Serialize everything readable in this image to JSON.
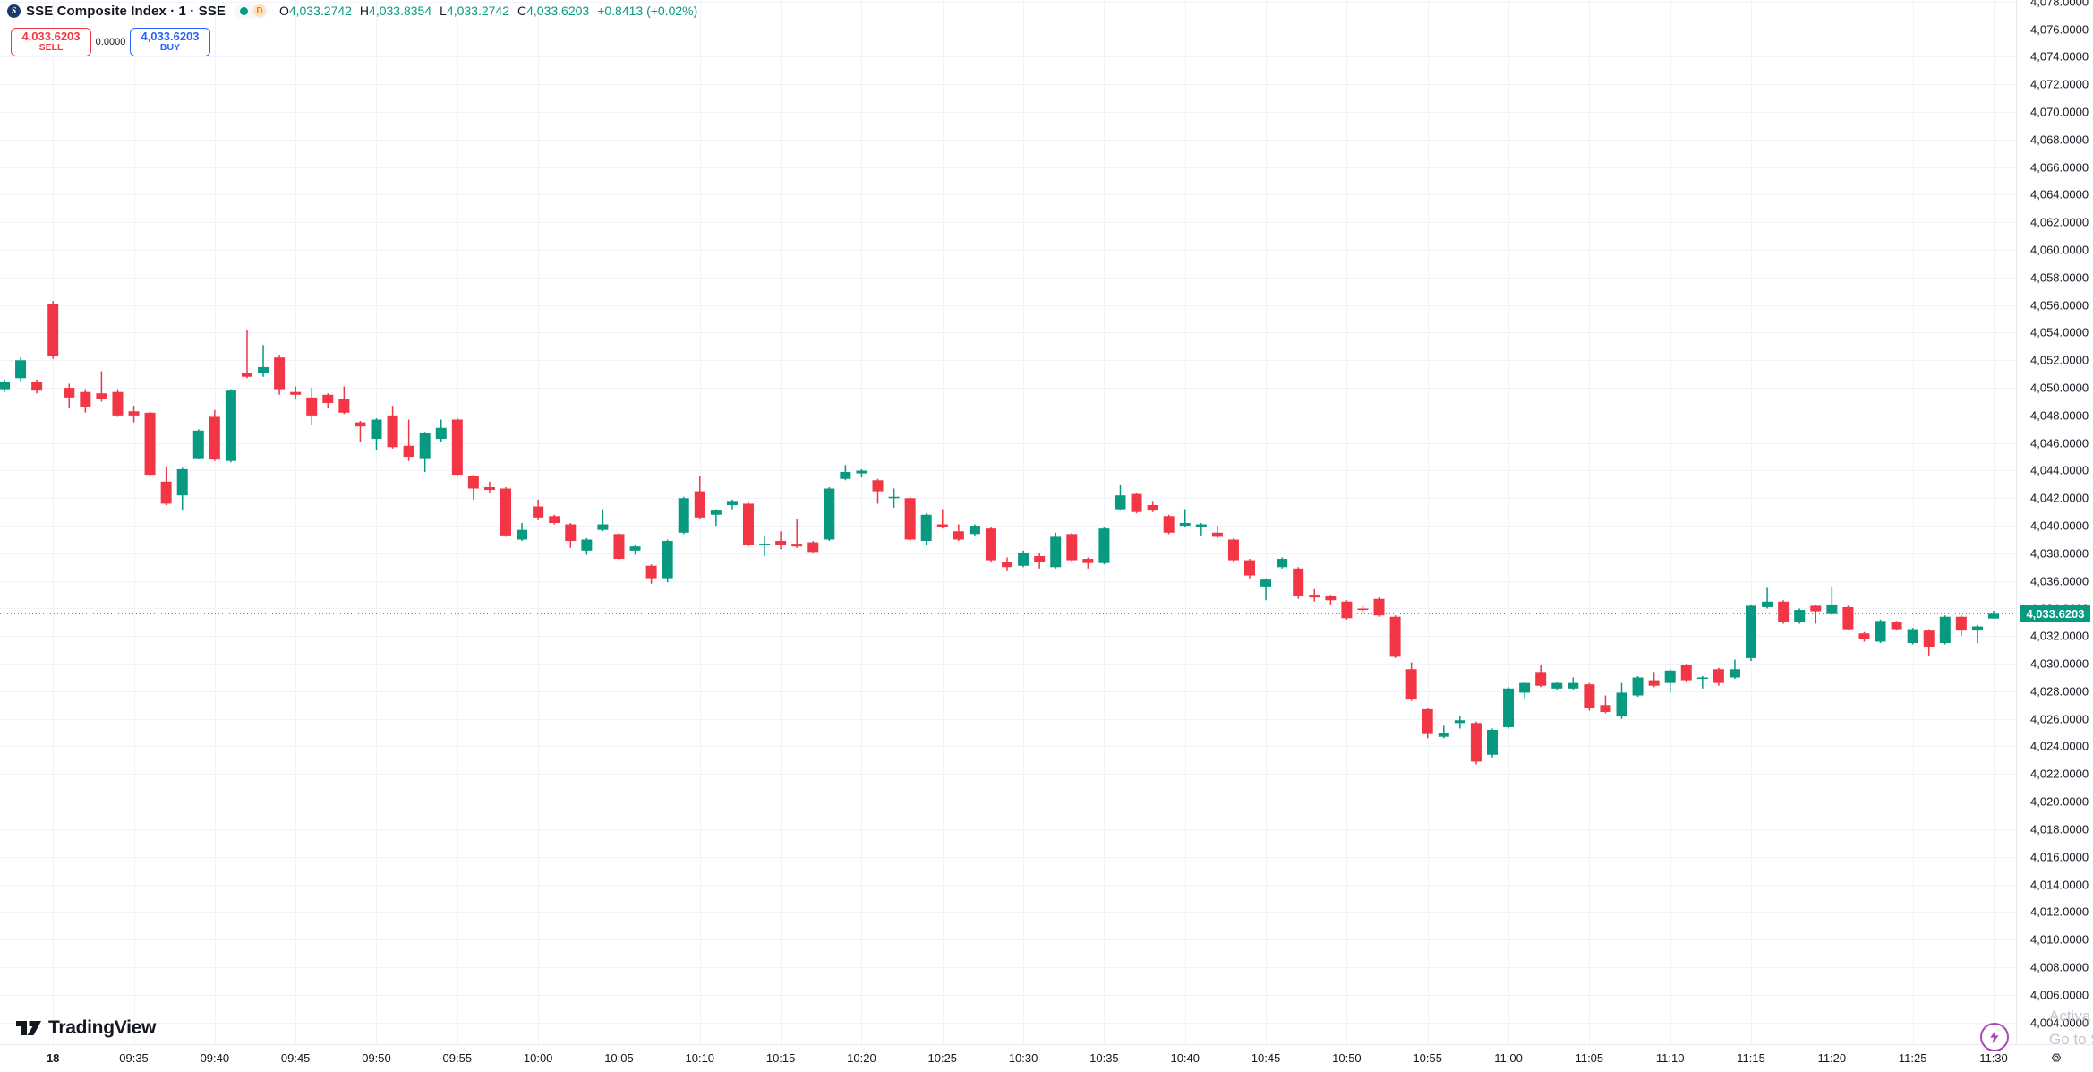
{
  "header": {
    "symbol_title": "SSE Composite Index · 1 · SSE",
    "logo_letter": "S",
    "market_status_dot_color": "#089981",
    "delayed_badge": "D",
    "ohlc": [
      {
        "k": "O",
        "v": "4,033.2742"
      },
      {
        "k": "H",
        "v": "4,033.8354"
      },
      {
        "k": "L",
        "v": "4,033.2742"
      },
      {
        "k": "C",
        "v": "4,033.6203"
      }
    ],
    "change": "+0.8413 (+0.02%)"
  },
  "order_panel": {
    "sell_price": "4,033.6203",
    "sell_label": "SELL",
    "spread": "0.0000",
    "buy_price": "4,033.6203",
    "buy_label": "BUY"
  },
  "price_axis": {
    "tick_labels": [
      "4,004.0000",
      "4,006.0000",
      "4,008.0000",
      "4,010.0000",
      "4,012.0000",
      "4,014.0000",
      "4,016.0000",
      "4,018.0000",
      "4,020.0000",
      "4,022.0000",
      "4,024.0000",
      "4,026.0000",
      "4,028.0000",
      "4,030.0000",
      "4,032.0000",
      "4,034.0000",
      "4,036.0000",
      "4,038.0000",
      "4,040.0000",
      "4,042.0000",
      "4,044.0000",
      "4,046.0000",
      "4,048.0000",
      "4,050.0000",
      "4,052.0000",
      "4,054.0000",
      "4,056.0000",
      "4,058.0000",
      "4,060.0000",
      "4,062.0000",
      "4,064.0000",
      "4,066.0000",
      "4,068.0000",
      "4,070.0000",
      "4,072.0000",
      "4,074.0000",
      "4,076.0000",
      "4,078.0000"
    ],
    "tick_prices": [
      4004,
      4006,
      4008,
      4010,
      4012,
      4014,
      4016,
      4018,
      4020,
      4022,
      4024,
      4026,
      4028,
      4030,
      4032,
      4034,
      4036,
      4038,
      4040,
      4042,
      4044,
      4046,
      4048,
      4050,
      4052,
      4054,
      4056,
      4058,
      4060,
      4062,
      4064,
      4066,
      4068,
      4070,
      4072,
      4074,
      4076,
      4078
    ],
    "last_price_tag": "4,033.6203"
  },
  "time_axis": {
    "labels": [
      {
        "text": "18",
        "bold": true,
        "candle_index": 3
      },
      {
        "text": "09:35",
        "candle_index": 8
      },
      {
        "text": "09:40",
        "candle_index": 13
      },
      {
        "text": "09:45",
        "candle_index": 18
      },
      {
        "text": "09:50",
        "candle_index": 23
      },
      {
        "text": "09:55",
        "candle_index": 28
      },
      {
        "text": "10:00",
        "candle_index": 33
      },
      {
        "text": "10:05",
        "candle_index": 38
      },
      {
        "text": "10:10",
        "candle_index": 43
      },
      {
        "text": "10:15",
        "candle_index": 48
      },
      {
        "text": "10:20",
        "candle_index": 53
      },
      {
        "text": "10:25",
        "candle_index": 58
      },
      {
        "text": "10:30",
        "candle_index": 63
      },
      {
        "text": "10:35",
        "candle_index": 68
      },
      {
        "text": "10:40",
        "candle_index": 73
      },
      {
        "text": "10:45",
        "candle_index": 78
      },
      {
        "text": "10:50",
        "candle_index": 83
      },
      {
        "text": "10:55",
        "candle_index": 88
      },
      {
        "text": "11:00",
        "candle_index": 93
      },
      {
        "text": "11:05",
        "candle_index": 98
      },
      {
        "text": "11:10",
        "candle_index": 103
      },
      {
        "text": "11:15",
        "candle_index": 108
      },
      {
        "text": "11:20",
        "candle_index": 113
      },
      {
        "text": "11:25",
        "candle_index": 118
      },
      {
        "text": "11:30",
        "candle_index": 123
      }
    ]
  },
  "chart_data": {
    "type": "candlestick",
    "title": "SSE Composite Index 1-minute",
    "interval_minutes": 1,
    "first_session_candle_index": 3,
    "ylim": [
      4002.41,
      4078.12
    ],
    "grid": true,
    "up_color": "#089981",
    "down_color": "#f23645",
    "last_price": 4033.6203,
    "price_line_color": "#089981",
    "candles_ohlc": [
      [
        4049.9,
        4050.6,
        4049.7,
        4050.4
      ],
      [
        4050.7,
        4052.2,
        4050.5,
        4052.0
      ],
      [
        4050.4,
        4050.6,
        4049.6,
        4049.8
      ],
      [
        4056.1,
        4056.3,
        4052.1,
        4052.3
      ],
      [
        4050.0,
        4050.3,
        4048.5,
        4049.3
      ],
      [
        4049.7,
        4049.9,
        4048.2,
        4048.6
      ],
      [
        4049.6,
        4051.2,
        4049.0,
        4049.2
      ],
      [
        4049.7,
        4049.9,
        4047.9,
        4048.0
      ],
      [
        4048.3,
        4048.7,
        4047.5,
        4048.0
      ],
      [
        4048.2,
        4048.3,
        4043.6,
        4043.7
      ],
      [
        4043.2,
        4044.3,
        4041.5,
        4041.6
      ],
      [
        4042.2,
        4044.2,
        4041.1,
        4044.1
      ],
      [
        4044.9,
        4047.0,
        4044.8,
        4046.9
      ],
      [
        4047.9,
        4048.4,
        4044.7,
        4044.8
      ],
      [
        4044.7,
        4049.9,
        4044.6,
        4049.8
      ],
      [
        4051.1,
        4054.2,
        4050.7,
        4050.8
      ],
      [
        4051.1,
        4053.1,
        4050.8,
        4051.5
      ],
      [
        4052.2,
        4052.4,
        4049.5,
        4049.9
      ],
      [
        4049.7,
        4050.1,
        4049.2,
        4049.5
      ],
      [
        4049.3,
        4050.0,
        4047.3,
        4048.0
      ],
      [
        4049.5,
        4049.6,
        4048.5,
        4048.9
      ],
      [
        4049.2,
        4050.1,
        4048.1,
        4048.2
      ],
      [
        4047.5,
        4047.6,
        4046.1,
        4047.2
      ],
      [
        4046.3,
        4047.8,
        4045.5,
        4047.7
      ],
      [
        4048.0,
        4048.7,
        4045.6,
        4045.7
      ],
      [
        4045.8,
        4047.7,
        4044.7,
        4045.0
      ],
      [
        4044.9,
        4046.8,
        4043.9,
        4046.7
      ],
      [
        4046.3,
        4047.7,
        4046.1,
        4047.1
      ],
      [
        4047.7,
        4047.8,
        4043.6,
        4043.7
      ],
      [
        4043.6,
        4043.7,
        4041.9,
        4042.7
      ],
      [
        4042.8,
        4043.2,
        4042.4,
        4042.6
      ],
      [
        4042.7,
        4042.8,
        4039.2,
        4039.3
      ],
      [
        4039.0,
        4040.2,
        4038.9,
        4039.7
      ],
      [
        4041.4,
        4041.9,
        4040.4,
        4040.6
      ],
      [
        4040.7,
        4040.8,
        4040.1,
        4040.2
      ],
      [
        4040.1,
        4040.2,
        4038.4,
        4038.9
      ],
      [
        4038.2,
        4039.1,
        4037.9,
        4039.0
      ],
      [
        4039.7,
        4041.2,
        4039.6,
        4040.1
      ],
      [
        4039.4,
        4039.5,
        4037.5,
        4037.6
      ],
      [
        4038.2,
        4038.6,
        4037.9,
        4038.5
      ],
      [
        4037.1,
        4037.2,
        4035.8,
        4036.2
      ],
      [
        4036.2,
        4039.0,
        4035.9,
        4038.9
      ],
      [
        4039.5,
        4042.1,
        4039.4,
        4042.0
      ],
      [
        4042.5,
        4043.6,
        4040.5,
        4040.6
      ],
      [
        4040.8,
        4041.2,
        4040.0,
        4041.1
      ],
      [
        4041.5,
        4041.9,
        4041.2,
        4041.8
      ],
      [
        4041.6,
        4041.7,
        4038.5,
        4038.6
      ],
      [
        4038.6,
        4039.3,
        4037.8,
        4038.7
      ],
      [
        4038.9,
        4039.6,
        4038.3,
        4038.6
      ],
      [
        4038.7,
        4040.5,
        4038.4,
        4038.5
      ],
      [
        4038.8,
        4038.9,
        4038.0,
        4038.1
      ],
      [
        4039.0,
        4042.8,
        4038.9,
        4042.7
      ],
      [
        4043.4,
        4044.4,
        4043.3,
        4043.9
      ],
      [
        4043.8,
        4044.1,
        4043.5,
        4044.0
      ],
      [
        4043.3,
        4043.4,
        4041.6,
        4042.5
      ],
      [
        4042.0,
        4042.7,
        4041.3,
        4042.1
      ],
      [
        4042.0,
        4042.1,
        4038.9,
        4039.0
      ],
      [
        4038.9,
        4040.9,
        4038.6,
        4040.8
      ],
      [
        4040.1,
        4041.2,
        4039.8,
        4039.9
      ],
      [
        4039.6,
        4040.1,
        4038.9,
        4039.0
      ],
      [
        4039.4,
        4040.1,
        4039.3,
        4040.0
      ],
      [
        4039.8,
        4039.9,
        4037.4,
        4037.5
      ],
      [
        4037.4,
        4037.7,
        4036.7,
        4037.0
      ],
      [
        4037.1,
        4038.2,
        4037.0,
        4038.0
      ],
      [
        4037.8,
        4038.0,
        4036.9,
        4037.4
      ],
      [
        4037.0,
        4039.5,
        4036.9,
        4039.2
      ],
      [
        4039.4,
        4039.5,
        4037.4,
        4037.5
      ],
      [
        4037.6,
        4037.7,
        4036.9,
        4037.3
      ],
      [
        4037.3,
        4039.9,
        4037.2,
        4039.8
      ],
      [
        4041.2,
        4043.0,
        4041.1,
        4042.2
      ],
      [
        4042.3,
        4042.4,
        4040.9,
        4041.0
      ],
      [
        4041.5,
        4041.8,
        4041.0,
        4041.1
      ],
      [
        4040.7,
        4040.8,
        4039.4,
        4039.5
      ],
      [
        4040.0,
        4041.2,
        4039.9,
        4040.2
      ],
      [
        4039.9,
        4040.2,
        4039.3,
        4040.1
      ],
      [
        4039.5,
        4040.0,
        4039.1,
        4039.2
      ],
      [
        4039.0,
        4039.1,
        4037.4,
        4037.5
      ],
      [
        4037.5,
        4037.6,
        4036.2,
        4036.4
      ],
      [
        4035.6,
        4036.2,
        4034.6,
        4036.1
      ],
      [
        4037.0,
        4037.7,
        4036.9,
        4037.6
      ],
      [
        4036.9,
        4037.0,
        4034.7,
        4034.9
      ],
      [
        4035.0,
        4035.4,
        4034.5,
        4034.8
      ],
      [
        4034.9,
        4035.0,
        4034.3,
        4034.6
      ],
      [
        4034.5,
        4034.6,
        4033.2,
        4033.3
      ],
      [
        4034.0,
        4034.2,
        4033.7,
        4033.9
      ],
      [
        4034.7,
        4034.8,
        4033.4,
        4033.5
      ],
      [
        4033.4,
        4033.5,
        4030.4,
        4030.5
      ],
      [
        4029.6,
        4030.1,
        4027.3,
        4027.4
      ],
      [
        4026.7,
        4026.8,
        4024.6,
        4024.9
      ],
      [
        4024.7,
        4025.5,
        4024.6,
        4025.0
      ],
      [
        4025.7,
        4026.2,
        4025.3,
        4025.9
      ],
      [
        4025.7,
        4025.8,
        4022.7,
        4022.9
      ],
      [
        4023.4,
        4025.3,
        4023.2,
        4025.2
      ],
      [
        4025.4,
        4028.3,
        4025.3,
        4028.2
      ],
      [
        4027.9,
        4028.7,
        4027.5,
        4028.6
      ],
      [
        4029.4,
        4029.9,
        4028.3,
        4028.4
      ],
      [
        4028.2,
        4028.7,
        4028.1,
        4028.6
      ],
      [
        4028.2,
        4029.0,
        4028.1,
        4028.6
      ],
      [
        4028.5,
        4028.6,
        4026.6,
        4026.8
      ],
      [
        4027.0,
        4027.7,
        4026.4,
        4026.5
      ],
      [
        4026.2,
        4028.6,
        4026.0,
        4027.9
      ],
      [
        4027.7,
        4029.1,
        4027.6,
        4029.0
      ],
      [
        4028.8,
        4029.4,
        4028.3,
        4028.4
      ],
      [
        4028.6,
        4029.6,
        4027.9,
        4029.5
      ],
      [
        4029.9,
        4030.0,
        4028.7,
        4028.8
      ],
      [
        4028.9,
        4029.1,
        4028.2,
        4029.0
      ],
      [
        4029.6,
        4029.7,
        4028.4,
        4028.6
      ],
      [
        4029.0,
        4030.3,
        4028.9,
        4029.6
      ],
      [
        4030.4,
        4034.3,
        4030.2,
        4034.2
      ],
      [
        4034.1,
        4035.5,
        4034.0,
        4034.5
      ],
      [
        4034.5,
        4034.6,
        4032.9,
        4033.0
      ],
      [
        4033.0,
        4034.0,
        4032.9,
        4033.9
      ],
      [
        4034.2,
        4034.3,
        4032.9,
        4033.8
      ],
      [
        4033.6,
        4035.6,
        4033.5,
        4034.3
      ],
      [
        4034.1,
        4034.2,
        4032.4,
        4032.5
      ],
      [
        4032.2,
        4032.3,
        4031.6,
        4031.8
      ],
      [
        4031.6,
        4033.2,
        4031.5,
        4033.1
      ],
      [
        4033.0,
        4033.1,
        4032.4,
        4032.5
      ],
      [
        4031.5,
        4032.6,
        4031.4,
        4032.5
      ],
      [
        4032.4,
        4032.5,
        4030.6,
        4031.2
      ],
      [
        4031.5,
        4033.5,
        4031.4,
        4033.4
      ],
      [
        4033.4,
        4033.5,
        4032.0,
        4032.4
      ],
      [
        4032.4,
        4032.8,
        4031.5,
        4032.7
      ],
      [
        4033.2742,
        4033.8354,
        4033.2742,
        4033.6203
      ]
    ]
  },
  "footer": {
    "tv_logo_text": "TradingView"
  },
  "windows_watermark": {
    "line1": "Activa",
    "line2": "Go to S"
  }
}
